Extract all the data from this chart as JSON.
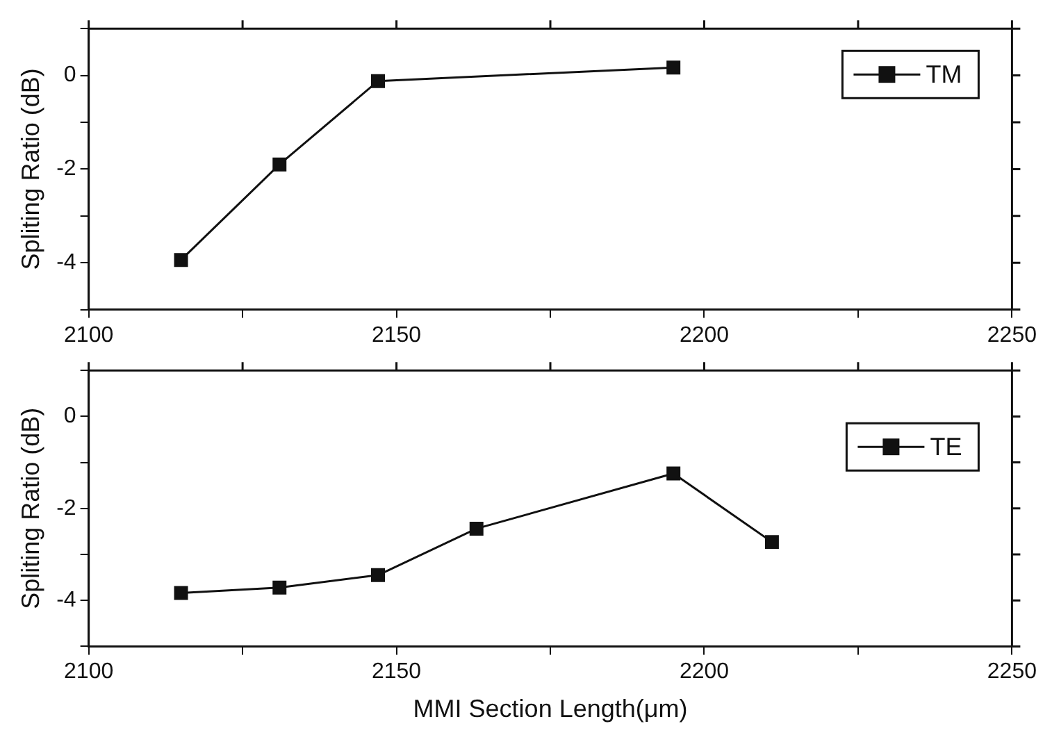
{
  "chart_data": [
    {
      "type": "line",
      "ylabel": "Spliting Ratio (dB)",
      "x": [
        2115,
        2131,
        2147,
        2195
      ],
      "series": [
        {
          "name": "TM",
          "color": "#111111",
          "values": [
            -3.94,
            -1.9,
            -0.12,
            0.17
          ]
        }
      ],
      "xlim": [
        2100,
        2250
      ],
      "xticks": [
        2100,
        {
          "value": 2125,
          "label": null
        },
        2150,
        {
          "value": 2175,
          "label": null
        },
        2200,
        {
          "value": 2225,
          "label": null
        },
        2250
      ],
      "ylim": [
        -5,
        1
      ],
      "yticks": [
        {
          "value": -5,
          "label": null
        },
        -4,
        {
          "value": -3,
          "label": null
        },
        -2,
        {
          "value": -1,
          "label": null
        },
        0,
        {
          "value": 1,
          "label": null
        }
      ],
      "legend": "top right",
      "marker": "square",
      "grid": false
    },
    {
      "type": "line",
      "ylabel": "Spliting Ratio (dB)",
      "xlabel": "MMI Section Length(μm)",
      "x": [
        2115,
        2131,
        2147,
        2163,
        2195,
        2211
      ],
      "series": [
        {
          "name": "TE",
          "color": "#111111",
          "values": [
            -3.84,
            -3.72,
            -3.45,
            -2.44,
            -1.24,
            -2.73
          ]
        }
      ],
      "xlim": [
        2100,
        2250
      ],
      "xticks": [
        2100,
        {
          "value": 2125,
          "label": null
        },
        2150,
        {
          "value": 2175,
          "label": null
        },
        2200,
        {
          "value": 2225,
          "label": null
        },
        2250
      ],
      "ylim": [
        -5,
        1
      ],
      "yticks": [
        {
          "value": -5,
          "label": null
        },
        -4,
        {
          "value": -3,
          "label": null
        },
        -2,
        {
          "value": -1,
          "label": null
        },
        0,
        {
          "value": 1,
          "label": null
        }
      ],
      "legend": "top right",
      "marker": "square",
      "grid": false
    }
  ]
}
